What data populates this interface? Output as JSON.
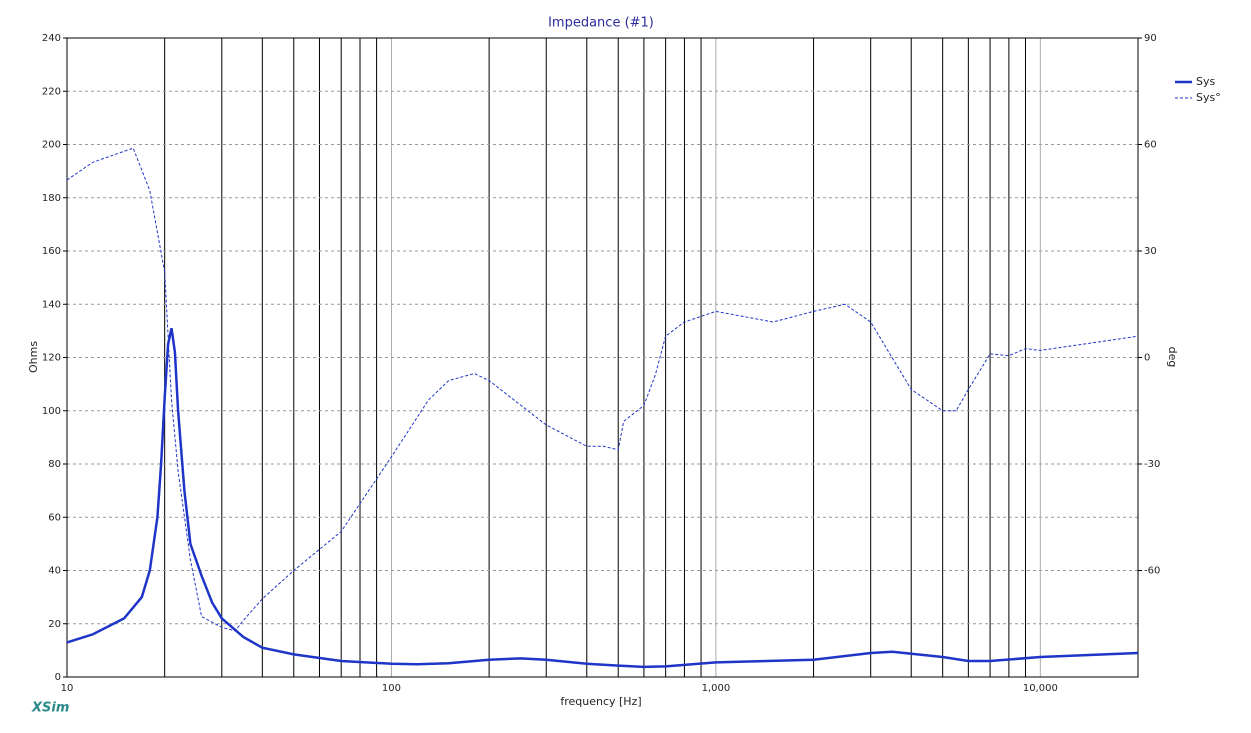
{
  "chart_data": {
    "type": "line",
    "title": "Impedance (#1)",
    "xlabel": "frequency [Hz]",
    "ylabel": "Ohms",
    "y2label": "deg",
    "logo": "XSim",
    "xscale": "log",
    "xlim": [
      10,
      20000
    ],
    "xticks": [
      10,
      100,
      {
        "value": 1000,
        "label": "1,000"
      },
      {
        "value": 10000,
        "label": "10,000"
      }
    ],
    "ylim": [
      0,
      240
    ],
    "yticks": [
      0,
      20,
      40,
      60,
      80,
      100,
      120,
      140,
      160,
      180,
      200,
      220,
      240
    ],
    "y2lim": [
      -90,
      90
    ],
    "y2ticks": [
      -60,
      -30,
      0,
      30,
      60,
      90
    ],
    "grid": true,
    "legend": "right",
    "series": [
      {
        "name": "Sys",
        "color": "#1f35c8",
        "dash": false,
        "x": [
          10,
          12,
          15,
          17,
          18,
          19,
          19.5,
          20,
          20.5,
          21,
          21.5,
          22,
          23,
          24,
          26,
          28,
          30,
          35,
          40,
          50,
          70,
          100,
          120,
          150,
          200,
          250,
          300,
          400,
          500,
          600,
          700,
          1000,
          2000,
          3000,
          3500,
          5000,
          6000,
          7000,
          10000,
          20000
        ],
        "values": [
          13,
          16,
          22,
          30,
          40,
          60,
          80,
          105,
          125,
          131,
          122,
          100,
          70,
          50,
          38,
          28,
          22,
          15,
          11,
          8.5,
          6,
          5,
          4.8,
          5.2,
          6.5,
          7,
          6.5,
          5,
          4.3,
          3.8,
          4,
          5.5,
          6.5,
          9,
          9.5,
          7.5,
          6,
          6,
          7.5,
          9
        ]
      },
      {
        "name": "Sys°",
        "color": "#1f35c8",
        "dash": true,
        "axis": "y2",
        "x": [
          10,
          12,
          16,
          18,
          20,
          21,
          22,
          24,
          26,
          30,
          33,
          35,
          40,
          50,
          70,
          100,
          130,
          150,
          180,
          200,
          300,
          400,
          450,
          500,
          520,
          600,
          650,
          700,
          800,
          1000,
          1500,
          2000,
          2500,
          3000,
          4000,
          5000,
          5500,
          6000,
          7000,
          8000,
          9000,
          10000,
          20000
        ],
        "values": [
          50,
          55,
          59,
          47,
          24,
          -12,
          -32,
          -57,
          -73,
          -76,
          -77,
          -74,
          -68,
          -60,
          -49,
          -28,
          -12,
          -6.5,
          -4.5,
          -6.5,
          -19,
          -25,
          -25,
          -26,
          -18,
          -13.5,
          -5,
          6,
          10,
          13,
          10,
          13,
          15,
          10,
          -9,
          -15,
          -15,
          -9,
          1,
          0.5,
          2.5,
          2,
          6
        ]
      }
    ]
  }
}
